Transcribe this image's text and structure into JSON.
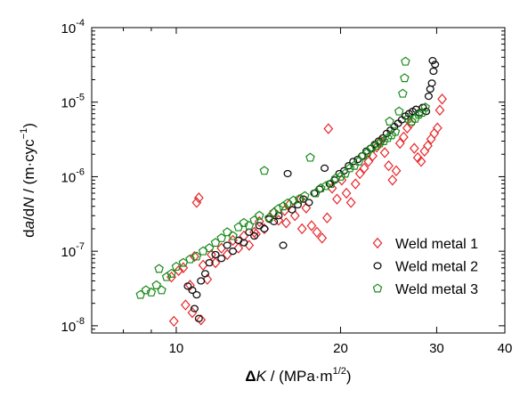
{
  "chart_data": {
    "type": "scatter",
    "x_scale": "log",
    "y_scale": "log",
    "xlim": [
      7,
      40
    ],
    "ylim": [
      8e-09,
      0.0001
    ],
    "x_ticks": [
      {
        "value": 10,
        "label": "10"
      },
      {
        "value": 20,
        "label": "20"
      },
      {
        "value": 30,
        "label": "30"
      },
      {
        "value": 40,
        "label": "40"
      }
    ],
    "y_ticks": [
      {
        "value": 1e-08,
        "base": "10",
        "exp": "-8"
      },
      {
        "value": 1e-07,
        "base": "10",
        "exp": "-7"
      },
      {
        "value": 1e-06,
        "base": "10",
        "exp": "-6"
      },
      {
        "value": 1e-05,
        "base": "10",
        "exp": "-5"
      },
      {
        "value": 0.0001,
        "base": "10",
        "exp": "-4"
      }
    ],
    "xlabel": {
      "parts": [
        "Δ",
        "K",
        " / (MPa·m",
        "1/2",
        ")"
      ]
    },
    "ylabel": {
      "parts": [
        "d",
        "a",
        "/d",
        "N",
        " / (m·cyc",
        "−1",
        ")"
      ]
    },
    "grid": false,
    "legend_position": "bottom-right",
    "series": [
      {
        "name": "Weld metal 1",
        "marker": "diamond",
        "color": "#e8262a",
        "points": [
          [
            9.8,
            4.5e-08
          ],
          [
            10.1,
            5.5e-08
          ],
          [
            10.3,
            6e-08
          ],
          [
            10.6,
            3.5e-08
          ],
          [
            10.8,
            8.5e-08
          ],
          [
            10.9,
            4.5e-07
          ],
          [
            11.0,
            5.2e-07
          ],
          [
            11.2,
            6.5e-08
          ],
          [
            11.4,
            4.2e-08
          ],
          [
            10.4,
            1.9e-08
          ],
          [
            10.7,
            1.5e-08
          ],
          [
            11.1,
            1.2e-08
          ],
          [
            9.9,
            1.15e-08
          ],
          [
            11.6,
            9e-08
          ],
          [
            11.8,
            7e-08
          ],
          [
            12.1,
            1.1e-07
          ],
          [
            12.4,
            9e-08
          ],
          [
            12.7,
            1.4e-07
          ],
          [
            13.0,
            1.1e-07
          ],
          [
            13.3,
            1.6e-07
          ],
          [
            13.6,
            1.2e-07
          ],
          [
            13.9,
            1.8e-07
          ],
          [
            14.2,
            2.5e-07
          ],
          [
            14.5,
            2e-07
          ],
          [
            14.8,
            2.8e-07
          ],
          [
            15.1,
            3.3e-07
          ],
          [
            15.4,
            2.6e-07
          ],
          [
            15.8,
            3.5e-07
          ],
          [
            16.1,
            4.2e-07
          ],
          [
            16.5,
            3e-07
          ],
          [
            16.9,
            5e-07
          ],
          [
            17.3,
            3.8e-07
          ],
          [
            17.7,
            2.2e-07
          ],
          [
            18.1,
            1.8e-07
          ],
          [
            18.5,
            1.5e-07
          ],
          [
            18.9,
            2.8e-07
          ],
          [
            19.3,
            7e-07
          ],
          [
            19.7,
            5e-07
          ],
          [
            20.1,
            9e-07
          ],
          [
            20.5,
            6e-07
          ],
          [
            20.9,
            4.5e-07
          ],
          [
            21.3,
            8e-07
          ],
          [
            21.7,
            1.1e-06
          ],
          [
            22.1,
            1.3e-06
          ],
          [
            22.5,
            1.6e-06
          ],
          [
            22.9,
            1.9e-06
          ],
          [
            23.3,
            2.5e-06
          ],
          [
            23.7,
            3e-06
          ],
          [
            24.1,
            2.1e-06
          ],
          [
            24.5,
            1.4e-06
          ],
          [
            24.9,
            9e-07
          ],
          [
            25.3,
            1.2e-06
          ],
          [
            25.7,
            2.8e-06
          ],
          [
            26.1,
            3.4e-06
          ],
          [
            26.5,
            4.5e-06
          ],
          [
            26.9,
            5.2e-06
          ],
          [
            27.3,
            2.4e-06
          ],
          [
            27.7,
            1.8e-06
          ],
          [
            28.1,
            1.6e-06
          ],
          [
            28.5,
            2.2e-06
          ],
          [
            28.9,
            2.6e-06
          ],
          [
            29.3,
            3.2e-06
          ],
          [
            29.7,
            3.8e-06
          ],
          [
            30.1,
            4.5e-06
          ],
          [
            30.4,
            7.8e-06
          ],
          [
            30.7,
            1.1e-05
          ],
          [
            19.0,
            4.4e-06
          ],
          [
            17.0,
            2e-07
          ],
          [
            15.9,
            2.4e-07
          ],
          [
            14.0,
            1.7e-07
          ]
        ]
      },
      {
        "name": "Weld metal 2",
        "marker": "circle",
        "color": "#111111",
        "points": [
          [
            10.5,
            3.4e-08
          ],
          [
            10.7,
            3e-08
          ],
          [
            10.9,
            2.6e-08
          ],
          [
            11.1,
            4e-08
          ],
          [
            11.3,
            5e-08
          ],
          [
            10.8,
            1.7e-08
          ],
          [
            11.0,
            1.25e-08
          ],
          [
            11.5,
            7e-08
          ],
          [
            11.8,
            9e-08
          ],
          [
            12.1,
            8e-08
          ],
          [
            12.4,
            1.2e-07
          ],
          [
            12.7,
            1e-07
          ],
          [
            13.0,
            1.4e-07
          ],
          [
            13.3,
            1.3e-07
          ],
          [
            13.6,
            1.8e-07
          ],
          [
            13.9,
            1.6e-07
          ],
          [
            14.2,
            2.2e-07
          ],
          [
            14.5,
            2e-07
          ],
          [
            14.8,
            2.7e-07
          ],
          [
            15.1,
            2.5e-07
          ],
          [
            15.4,
            3e-07
          ],
          [
            15.7,
            1.2e-07
          ],
          [
            16.0,
            1.1e-06
          ],
          [
            16.3,
            3.6e-07
          ],
          [
            16.7,
            4.2e-07
          ],
          [
            17.1,
            5e-07
          ],
          [
            17.5,
            4.5e-07
          ],
          [
            17.9,
            6e-07
          ],
          [
            18.3,
            6.8e-07
          ],
          [
            18.7,
            1.3e-06
          ],
          [
            19.1,
            8e-07
          ],
          [
            19.5,
            9e-07
          ],
          [
            19.9,
            1.1e-06
          ],
          [
            20.3,
            1.2e-06
          ],
          [
            20.7,
            1.4e-06
          ],
          [
            21.1,
            1.6e-06
          ],
          [
            21.5,
            1.7e-06
          ],
          [
            21.9,
            1.9e-06
          ],
          [
            22.3,
            2.2e-06
          ],
          [
            22.7,
            2.4e-06
          ],
          [
            23.1,
            2.7e-06
          ],
          [
            23.5,
            3e-06
          ],
          [
            23.9,
            3.3e-06
          ],
          [
            24.3,
            3.8e-06
          ],
          [
            24.7,
            4.2e-06
          ],
          [
            25.1,
            4.7e-06
          ],
          [
            25.5,
            5.2e-06
          ],
          [
            25.9,
            5.8e-06
          ],
          [
            26.3,
            6.5e-06
          ],
          [
            26.7,
            7e-06
          ],
          [
            27.1,
            7.5e-06
          ],
          [
            27.5,
            8e-06
          ],
          [
            27.9,
            7.2e-06
          ],
          [
            28.3,
            8.5e-06
          ],
          [
            28.7,
            7.5e-06
          ],
          [
            29.0,
            1.2e-05
          ],
          [
            29.2,
            1.5e-05
          ],
          [
            29.4,
            1.8e-05
          ],
          [
            29.6,
            2.6e-05
          ],
          [
            29.8,
            3.2e-05
          ],
          [
            29.5,
            3.6e-05
          ]
        ]
      },
      {
        "name": "Weld metal 3",
        "marker": "pentagon",
        "color": "#1a8a1a",
        "points": [
          [
            8.6,
            2.6e-08
          ],
          [
            8.8,
            3e-08
          ],
          [
            9.0,
            2.8e-08
          ],
          [
            9.2,
            3.5e-08
          ],
          [
            9.4,
            3e-08
          ],
          [
            9.6,
            4.5e-08
          ],
          [
            9.3,
            5.8e-08
          ],
          [
            9.8,
            5e-08
          ],
          [
            10.0,
            6.2e-08
          ],
          [
            10.3,
            7e-08
          ],
          [
            10.6,
            7.8e-08
          ],
          [
            10.9,
            8.5e-08
          ],
          [
            11.2,
            1e-07
          ],
          [
            11.5,
            1.1e-07
          ],
          [
            11.8,
            1.3e-07
          ],
          [
            12.1,
            1.5e-07
          ],
          [
            12.4,
            1.8e-07
          ],
          [
            12.7,
            1.6e-07
          ],
          [
            13.0,
            2.1e-07
          ],
          [
            13.3,
            2.4e-07
          ],
          [
            13.6,
            2.2e-07
          ],
          [
            13.9,
            2.6e-07
          ],
          [
            14.2,
            3e-07
          ],
          [
            14.5,
            1.2e-06
          ],
          [
            14.8,
            2.8e-07
          ],
          [
            15.1,
            3.3e-07
          ],
          [
            15.4,
            3.7e-07
          ],
          [
            15.7,
            4e-07
          ],
          [
            16.0,
            4.4e-07
          ],
          [
            16.4,
            4.8e-07
          ],
          [
            16.8,
            5e-07
          ],
          [
            17.2,
            5.5e-07
          ],
          [
            17.6,
            1.8e-06
          ],
          [
            18.0,
            6e-07
          ],
          [
            18.4,
            7e-07
          ],
          [
            18.8,
            7.5e-07
          ],
          [
            19.2,
            8e-07
          ],
          [
            19.6,
            9.5e-07
          ],
          [
            20.0,
            1e-06
          ],
          [
            20.4,
            1.1e-06
          ],
          [
            20.8,
            1.3e-06
          ],
          [
            21.2,
            1.4e-06
          ],
          [
            21.6,
            1.6e-06
          ],
          [
            22.0,
            1.9e-06
          ],
          [
            22.4,
            2.1e-06
          ],
          [
            22.8,
            2.4e-06
          ],
          [
            23.2,
            2.6e-06
          ],
          [
            23.6,
            2.8e-06
          ],
          [
            24.0,
            3e-06
          ],
          [
            24.4,
            3.3e-06
          ],
          [
            24.8,
            3.6e-06
          ],
          [
            25.2,
            4e-06
          ],
          [
            25.6,
            7.5e-06
          ],
          [
            26.0,
            1.3e-05
          ],
          [
            26.2,
            2.1e-05
          ],
          [
            26.3,
            3.5e-05
          ],
          [
            26.6,
            6e-06
          ],
          [
            27.0,
            5.5e-06
          ],
          [
            27.4,
            6e-06
          ],
          [
            27.8,
            6.8e-06
          ],
          [
            28.2,
            7.2e-06
          ],
          [
            28.6,
            8.5e-06
          ],
          [
            24.6,
            5.5e-06
          ]
        ]
      }
    ]
  }
}
